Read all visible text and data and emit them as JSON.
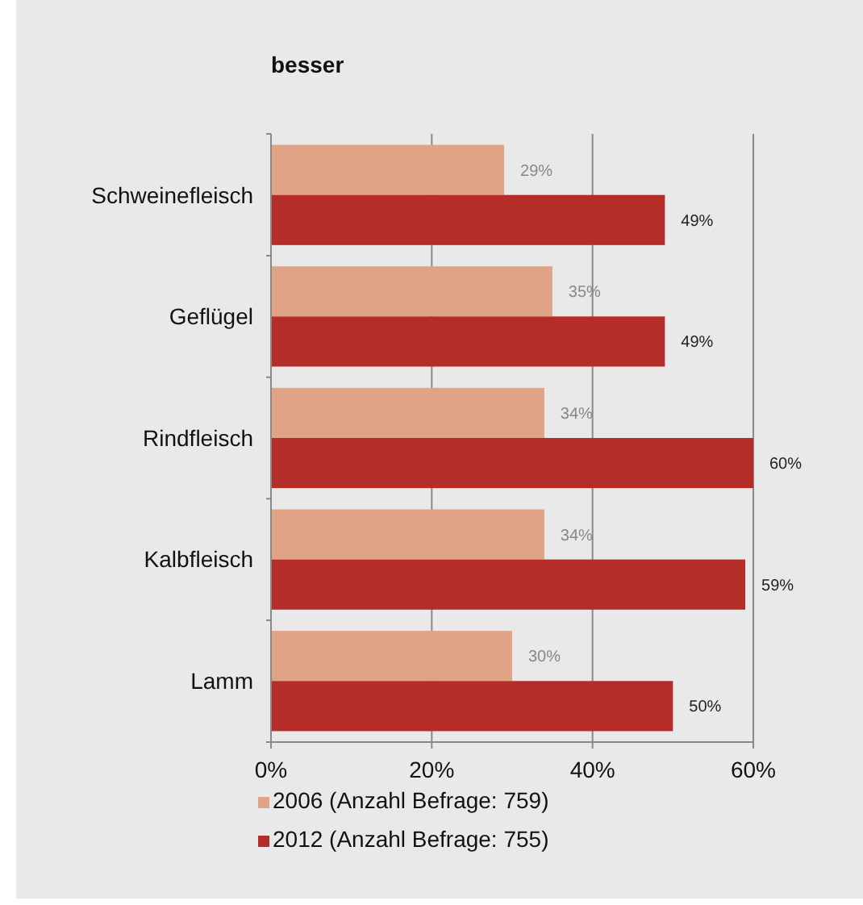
{
  "chart_data": {
    "type": "bar",
    "orientation": "horizontal",
    "title": "besser",
    "categories": [
      "Schweinefleisch",
      "Geflügel",
      "Rindfleisch",
      "Kalbfleisch",
      "Lamm"
    ],
    "series": [
      {
        "name": "2006 (Anzahl Befrage: 759)",
        "color": "#e0a385",
        "values": [
          29,
          35,
          34,
          34,
          30
        ],
        "value_labels": [
          "29%",
          "35%",
          "34%",
          "34%",
          "30%"
        ]
      },
      {
        "name": "2012 (Anzahl Befrage: 755)",
        "color": "#b52d29",
        "values": [
          49,
          49,
          60,
          59,
          50
        ],
        "value_labels": [
          "49%",
          "49%",
          "60%",
          "59%",
          "50%"
        ]
      }
    ],
    "xlim": [
      0,
      60
    ],
    "xticks": [
      {
        "value": 0,
        "label": "0%"
      },
      {
        "value": 20,
        "label": "20%"
      },
      {
        "value": 40,
        "label": "40%"
      },
      {
        "value": 60,
        "label": "60%"
      }
    ],
    "grid": "x",
    "legend": "bottom"
  }
}
